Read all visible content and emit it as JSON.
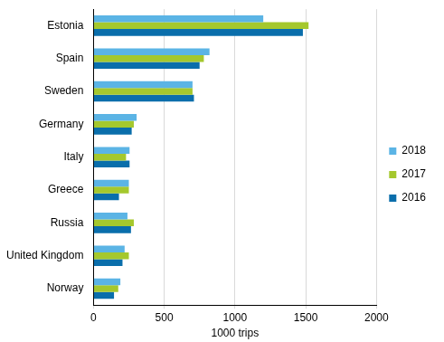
{
  "chart_data": {
    "type": "bar",
    "orientation": "horizontal",
    "x_label": "1000 trips",
    "categories": [
      "Estonia",
      "Spain",
      "Sweden",
      "Germany",
      "Italy",
      "Greece",
      "Russia",
      "United Kingdom",
      "Norway"
    ],
    "series": [
      {
        "name": "2018",
        "color": "#5bb4e5",
        "values": [
          1200,
          820,
          700,
          305,
          255,
          250,
          240,
          220,
          190
        ]
      },
      {
        "name": "2017",
        "color": "#a5c82d",
        "values": [
          1520,
          780,
          700,
          285,
          230,
          250,
          285,
          250,
          175
        ]
      },
      {
        "name": "2016",
        "color": "#0a6eab",
        "values": [
          1480,
          750,
          710,
          270,
          255,
          180,
          265,
          205,
          145
        ]
      }
    ],
    "xlim": [
      0,
      2000
    ],
    "xticks": [
      0,
      500,
      1000,
      1500,
      2000
    ],
    "grid": true,
    "legend": "right"
  }
}
